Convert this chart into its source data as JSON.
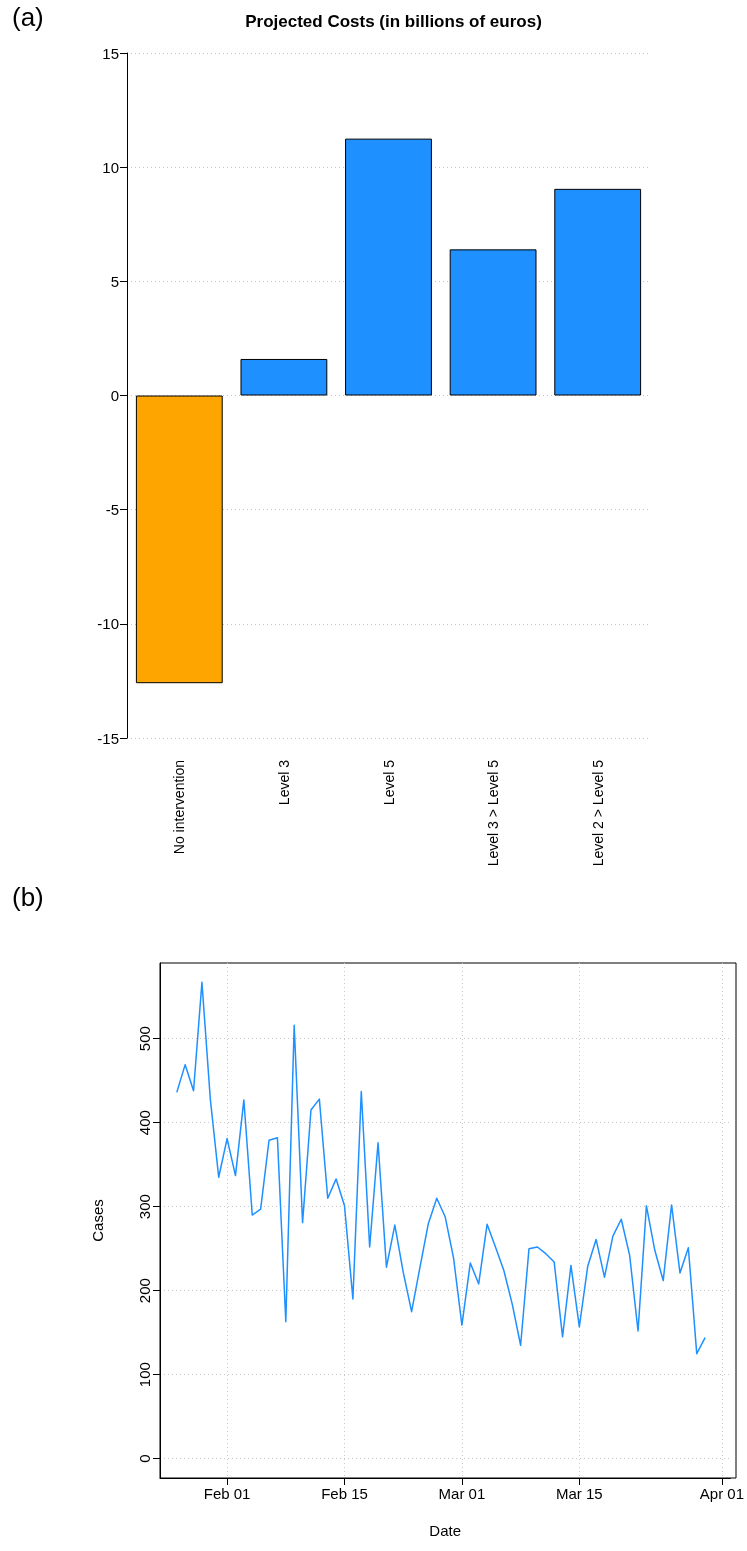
{
  "chart_data": [
    {
      "type": "bar",
      "title": "Projected Costs (in billions of euros)",
      "annotations": [
        "(a)"
      ],
      "categories": [
        "No intervention",
        "Level 3",
        "Level 5",
        "Level 3 > Level 5",
        "Level 2 > Level 5"
      ],
      "values": [
        -12.6,
        1.6,
        11.25,
        6.4,
        9.05
      ],
      "colors": [
        "#ffa500",
        "#1e90ff",
        "#1e90ff",
        "#1e90ff",
        "#1e90ff"
      ],
      "ylim": [
        -15,
        15
      ],
      "yticks": [
        -15,
        -10,
        -5,
        0,
        5,
        10,
        15
      ],
      "grid": "y"
    },
    {
      "type": "line",
      "annotations": [
        "(b)"
      ],
      "xlabel": "Date",
      "ylabel": "Cases",
      "x": [
        "--01-26",
        "--01-27",
        "--01-28",
        "--01-29",
        "--01-30",
        "--01-31",
        "--02-01",
        "--02-02",
        "--02-03",
        "--02-04",
        "--02-05",
        "--02-06",
        "--02-07",
        "--02-08",
        "--02-09",
        "--02-10",
        "--02-11",
        "--02-12",
        "--02-13",
        "--02-14",
        "--02-15",
        "--02-16",
        "--02-17",
        "--02-18",
        "--02-19",
        "--02-20",
        "--02-21",
        "--02-22",
        "--02-23",
        "--02-24",
        "--02-25",
        "--02-26",
        "--02-27",
        "--02-28",
        "--03-01",
        "--03-02",
        "--03-03",
        "--03-04",
        "--03-05",
        "--03-06",
        "--03-07",
        "--03-08",
        "--03-09",
        "--03-10",
        "--03-11",
        "--03-12",
        "--03-13",
        "--03-14",
        "--03-15",
        "--03-16",
        "--03-17",
        "--03-18",
        "--03-19",
        "--03-20",
        "--03-21",
        "--03-22",
        "--03-23",
        "--03-24",
        "--03-25",
        "--03-26",
        "--03-27",
        "--03-28",
        "--03-29",
        "--03-30"
      ],
      "series": [
        {
          "color": "#1e90ff",
          "values": [
            436,
            469,
            438,
            567,
            428,
            335,
            381,
            337,
            427,
            290,
            297,
            379,
            382,
            163,
            516,
            281,
            415,
            428,
            310,
            333,
            301,
            190,
            437,
            252,
            376,
            228,
            278,
            222,
            175,
            228,
            280,
            310,
            288,
            239,
            159,
            233,
            208,
            279,
            252,
            224,
            184,
            135,
            250,
            252,
            244,
            234,
            145,
            230,
            157,
            229,
            261,
            216,
            265,
            285,
            242,
            152,
            301,
            248,
            212,
            302,
            221,
            251,
            125,
            144
          ]
        }
      ],
      "xlim": [
        "--01-24",
        "--04-02"
      ],
      "xticks": [
        {
          "value": "--02-01",
          "label": "Feb 01"
        },
        {
          "value": "--02-15",
          "label": "Feb 15"
        },
        {
          "value": "--03-01",
          "label": "Mar 01"
        },
        {
          "value": "--03-15",
          "label": "Mar 15"
        },
        {
          "value": "--04-01",
          "label": "Apr 01"
        }
      ],
      "ylim": [
        -23,
        590
      ],
      "yticks": [
        0,
        100,
        200,
        300,
        400,
        500
      ],
      "grid": true,
      "marker": "none",
      "line_style": "solid"
    }
  ]
}
